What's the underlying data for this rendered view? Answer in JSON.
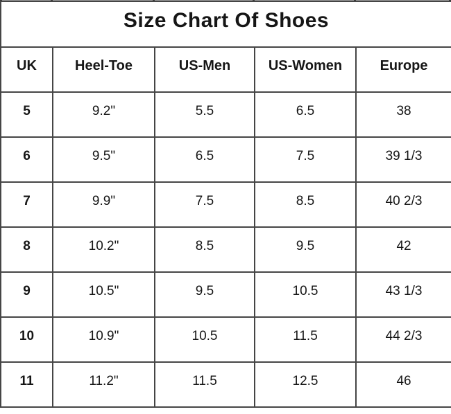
{
  "chart_data": {
    "type": "table",
    "title": "Size Chart Of Shoes",
    "columns": [
      "UK",
      "Heel-Toe",
      "US-Men",
      "US-Women",
      "Europe"
    ],
    "rows": [
      [
        "5",
        "9.2\"",
        "5.5",
        "6.5",
        "38"
      ],
      [
        "6",
        "9.5\"",
        "6.5",
        "7.5",
        "39 1/3"
      ],
      [
        "7",
        "9.9\"",
        "7.5",
        "8.5",
        "40 2/3"
      ],
      [
        "8",
        "10.2\"",
        "8.5",
        "9.5",
        "42"
      ],
      [
        "9",
        "10.5\"",
        "9.5",
        "10.5",
        "43 1/3"
      ],
      [
        "10",
        "10.9\"",
        "10.5",
        "11.5",
        "44 2/3"
      ],
      [
        "11",
        "11.2\"",
        "11.5",
        "12.5",
        "46"
      ]
    ]
  },
  "colors": {
    "border": "#454545",
    "text": "#161616",
    "background": "#ffffff"
  }
}
